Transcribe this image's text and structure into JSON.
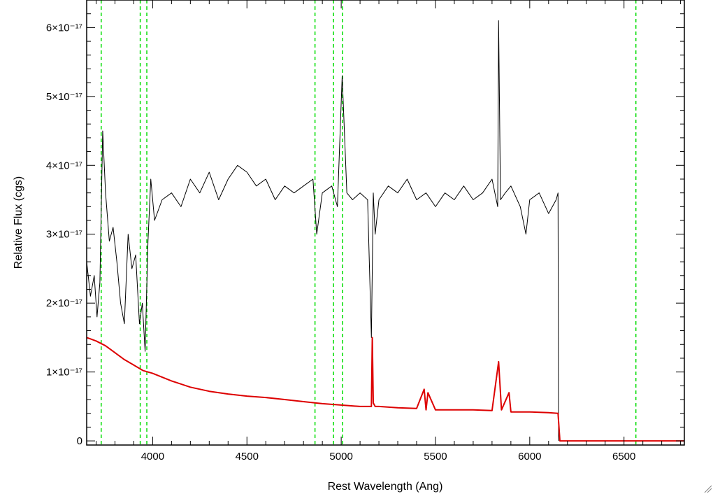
{
  "chart_data": {
    "type": "line",
    "xlabel": "Rest Wavelength (Ang)",
    "ylabel": "Relative Flux (cgs)",
    "xlim": [
      3650,
      6820
    ],
    "ylim": [
      -0.06,
      6.4
    ],
    "y_multiplier_exponent": -17,
    "x_ticks": [
      4000,
      4500,
      5000,
      5500,
      6000,
      6500
    ],
    "y_ticks": [
      {
        "value": 0,
        "label": "0"
      },
      {
        "value": 1,
        "label": "1×10⁻¹⁷"
      },
      {
        "value": 2,
        "label": "2×10⁻¹⁷"
      },
      {
        "value": 3,
        "label": "3×10⁻¹⁷"
      },
      {
        "value": 4,
        "label": "4×10⁻¹⁷"
      },
      {
        "value": 5,
        "label": "5×10⁻¹⁷"
      },
      {
        "value": 6,
        "label": "6×10⁻¹⁷"
      }
    ],
    "grid": false,
    "colors": {
      "spectrum": "#000000",
      "error": "#dd0000",
      "lines": "#00dd00"
    },
    "reference_lines_x": [
      3727,
      3934,
      3969,
      4861,
      4959,
      5007,
      6563
    ],
    "series": [
      {
        "role": "spectrum",
        "x": [
          3650,
          3670,
          3690,
          3705,
          3720,
          3735,
          3750,
          3770,
          3790,
          3810,
          3830,
          3850,
          3870,
          3890,
          3910,
          3930,
          3945,
          3960,
          3975,
          3990,
          4010,
          4050,
          4100,
          4150,
          4200,
          4250,
          4300,
          4350,
          4400,
          4450,
          4500,
          4550,
          4600,
          4650,
          4700,
          4750,
          4800,
          4850,
          4870,
          4900,
          4950,
          4980,
          5005,
          5030,
          5060,
          5100,
          5140,
          5160,
          5170,
          5180,
          5200,
          5250,
          5300,
          5350,
          5400,
          5450,
          5500,
          5550,
          5600,
          5650,
          5700,
          5750,
          5800,
          5830,
          5835,
          5845,
          5870,
          5900,
          5950,
          5980,
          6000,
          6050,
          6100,
          6140,
          6150,
          6153
        ],
        "y": [
          2.6,
          2.1,
          2.4,
          1.8,
          2.3,
          4.5,
          3.6,
          2.9,
          3.1,
          2.6,
          2.0,
          1.7,
          3.0,
          2.5,
          2.7,
          1.7,
          2.0,
          1.3,
          2.9,
          3.8,
          3.2,
          3.5,
          3.6,
          3.4,
          3.8,
          3.6,
          3.9,
          3.5,
          3.8,
          4.0,
          3.9,
          3.7,
          3.8,
          3.5,
          3.7,
          3.6,
          3.7,
          3.8,
          3.0,
          3.6,
          3.7,
          3.4,
          5.3,
          3.6,
          3.5,
          3.6,
          3.5,
          1.5,
          3.6,
          3.0,
          3.5,
          3.7,
          3.6,
          3.8,
          3.5,
          3.6,
          3.4,
          3.6,
          3.5,
          3.7,
          3.5,
          3.6,
          3.8,
          3.4,
          6.1,
          3.5,
          3.6,
          3.7,
          3.4,
          3.0,
          3.5,
          3.6,
          3.3,
          3.5,
          3.6,
          0.0
        ]
      },
      {
        "role": "error",
        "x": [
          3650,
          3700,
          3750,
          3800,
          3850,
          3900,
          3950,
          4000,
          4100,
          4200,
          4300,
          4400,
          4500,
          4600,
          4700,
          4800,
          4900,
          5000,
          5100,
          5160,
          5165,
          5170,
          5180,
          5200,
          5300,
          5400,
          5440,
          5450,
          5460,
          5500,
          5600,
          5700,
          5800,
          5835,
          5850,
          5890,
          5900,
          6000,
          6100,
          6150,
          6160,
          6820
        ],
        "y": [
          1.5,
          1.45,
          1.38,
          1.28,
          1.18,
          1.1,
          1.02,
          0.98,
          0.87,
          0.78,
          0.72,
          0.68,
          0.65,
          0.63,
          0.6,
          0.57,
          0.54,
          0.52,
          0.5,
          0.5,
          1.5,
          0.55,
          0.5,
          0.5,
          0.48,
          0.47,
          0.75,
          0.45,
          0.7,
          0.45,
          0.45,
          0.45,
          0.44,
          1.15,
          0.45,
          0.7,
          0.42,
          0.42,
          0.41,
          0.4,
          0.0,
          0.0
        ]
      }
    ]
  }
}
